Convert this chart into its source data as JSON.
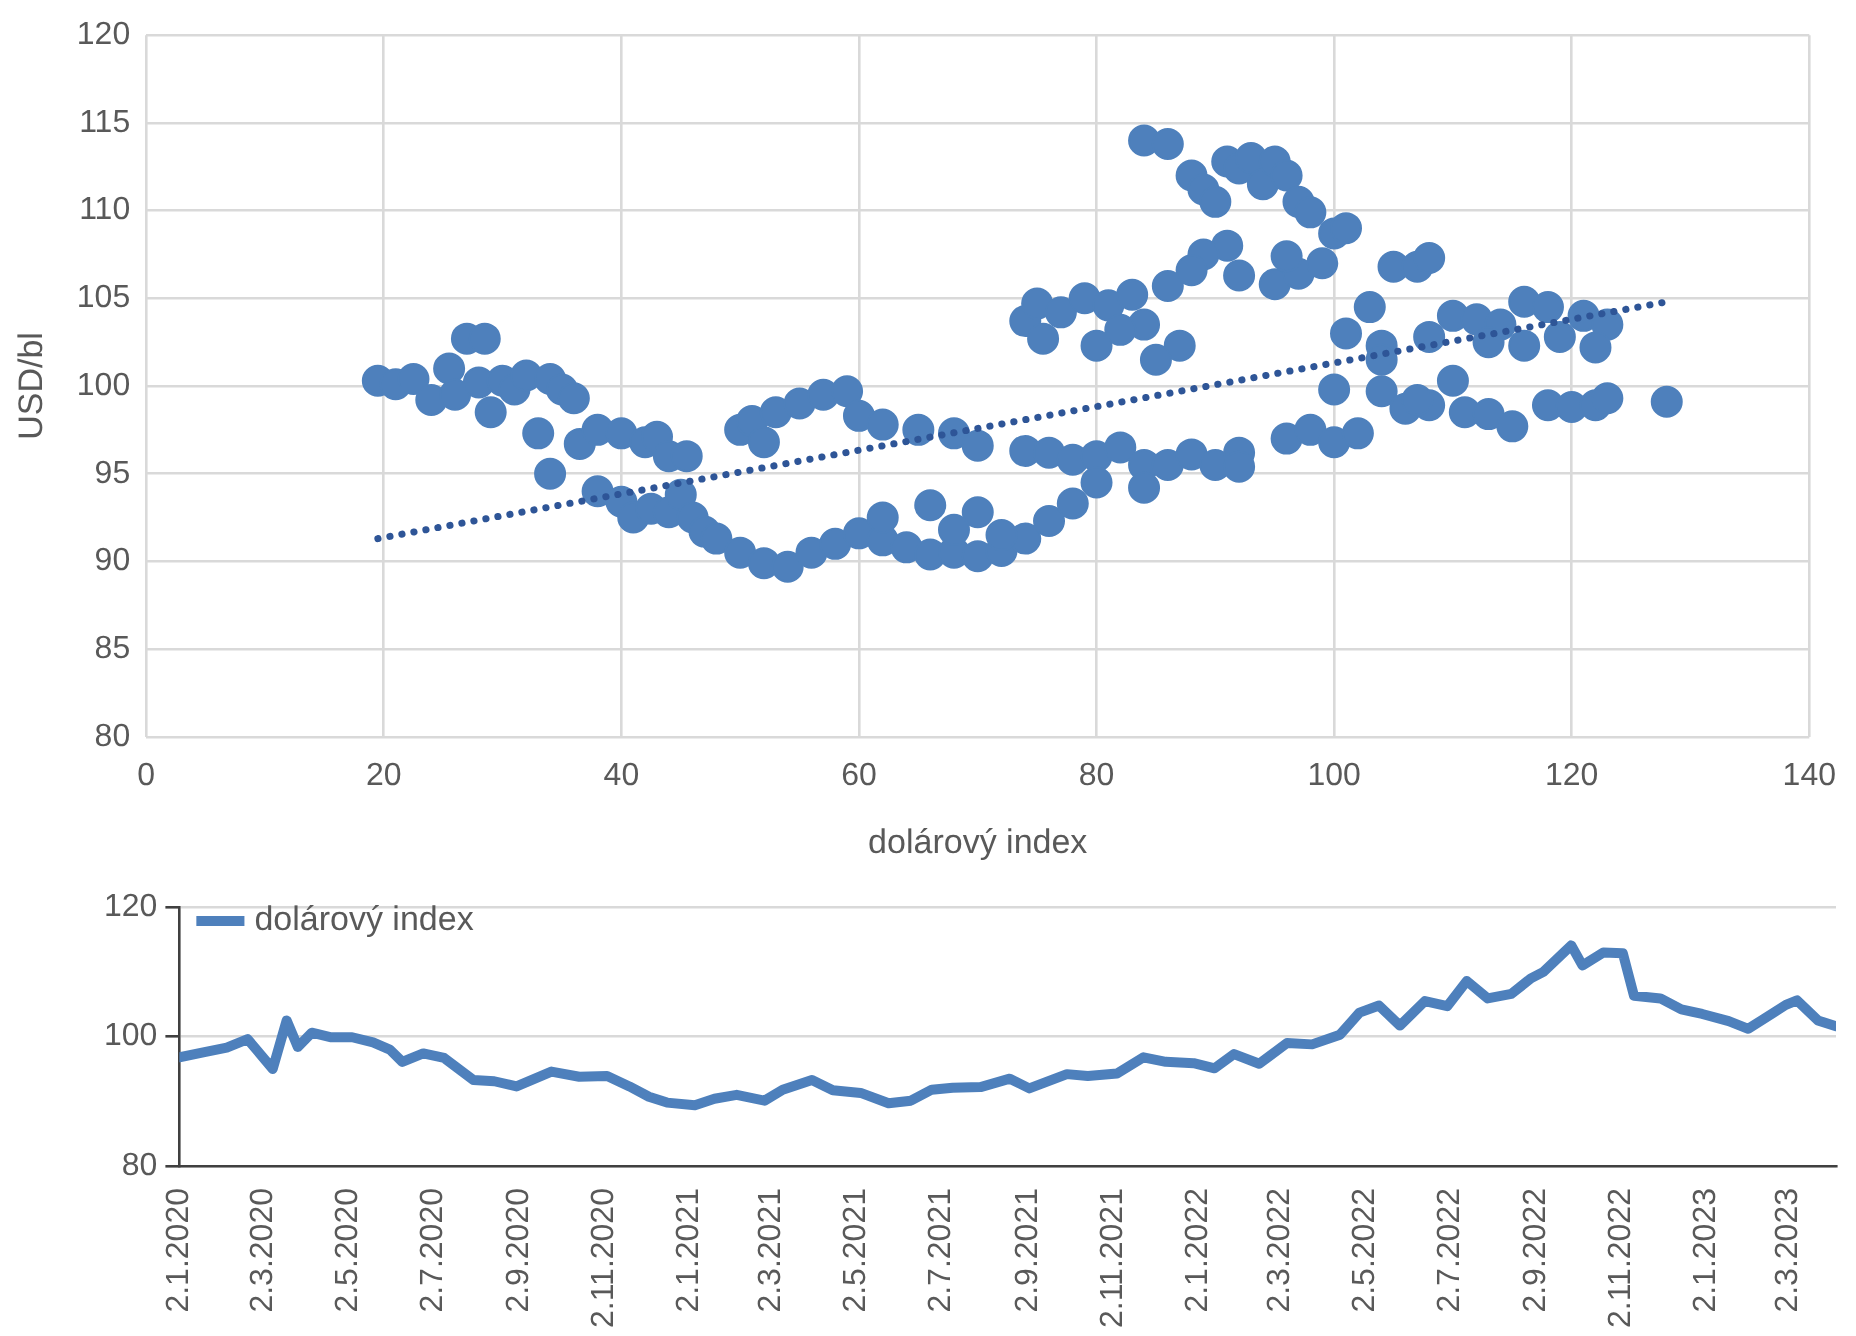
{
  "chart_data": [
    {
      "type": "scatter",
      "xlabel": "dolárový index",
      "ylabel": "USD/bl",
      "xlim": [
        0,
        140
      ],
      "xticks": [
        0,
        20,
        40,
        60,
        80,
        100,
        120,
        140
      ],
      "ylim": [
        80,
        120
      ],
      "yticks": [
        80,
        85,
        90,
        95,
        100,
        105,
        110,
        115,
        120
      ],
      "grid": true,
      "legend": false,
      "marker": "circle",
      "series": [
        {
          "color": "#4e80bc",
          "x": [
            19.5,
            21,
            22.5,
            24,
            25.5,
            26,
            27,
            28.5,
            28,
            29,
            30,
            31,
            32,
            33,
            34,
            35,
            36,
            34,
            36.5,
            38,
            40,
            42,
            43,
            44,
            45.5,
            38,
            40,
            41,
            42.5,
            44,
            45,
            46,
            47,
            48,
            50,
            52,
            54,
            56,
            58,
            60,
            62,
            64,
            66,
            68,
            70,
            72,
            74,
            76,
            78,
            70,
            66,
            62,
            68,
            72,
            50,
            51,
            53,
            55,
            57,
            59,
            52,
            60,
            62,
            65,
            68,
            70,
            74,
            76,
            78,
            80,
            82,
            84,
            86,
            88,
            90,
            92,
            74,
            75,
            77,
            79,
            81,
            83,
            84,
            86,
            75.5,
            80,
            87,
            85,
            82,
            84,
            86,
            88,
            89,
            90,
            91,
            92,
            93,
            94,
            95,
            96,
            97,
            98,
            91,
            89,
            92,
            95,
            97,
            99,
            100,
            101,
            96,
            88,
            101,
            103,
            105,
            107,
            108,
            110,
            112,
            114,
            116,
            118,
            121,
            123,
            122,
            119,
            116,
            113,
            108,
            104,
            96,
            98,
            100,
            102,
            104,
            106,
            108,
            111,
            113,
            115,
            118,
            120,
            122,
            123,
            128,
            100,
            104,
            107,
            110,
            80,
            84,
            92
          ],
          "values": [
            100.3,
            100.1,
            100.4,
            99.2,
            101,
            99.5,
            102.7,
            102.7,
            100.2,
            98.5,
            100.3,
            99.8,
            100.6,
            97.3,
            100.4,
            99.8,
            99.3,
            95,
            96.7,
            97.5,
            97.3,
            96.8,
            97.1,
            96,
            96,
            94,
            93.4,
            92.5,
            93,
            92.8,
            93.8,
            92.5,
            91.7,
            91.3,
            90.5,
            89.9,
            89.7,
            90.5,
            91,
            91.6,
            91.2,
            90.8,
            90.4,
            90.5,
            90.3,
            90.6,
            91.3,
            92.3,
            93.3,
            92.8,
            93.2,
            92.5,
            91.8,
            91.5,
            97.5,
            98,
            98.5,
            99,
            99.5,
            99.7,
            96.8,
            98.3,
            97.8,
            97.5,
            97.3,
            96.6,
            96.3,
            96.2,
            95.8,
            96,
            96.5,
            95.5,
            95.5,
            96.1,
            95.5,
            96.2,
            103.7,
            104.7,
            104.2,
            105,
            104.6,
            105.2,
            103.5,
            105.7,
            102.7,
            102.3,
            102.3,
            101.5,
            103.2,
            114,
            113.8,
            112,
            111.2,
            110.5,
            112.8,
            112.4,
            113,
            111.5,
            112.8,
            112,
            110.5,
            109.9,
            108,
            107.5,
            106.3,
            105.8,
            106.4,
            107,
            108.7,
            109,
            107.4,
            106.6,
            103,
            104.5,
            106.8,
            106.8,
            107.3,
            104,
            103.8,
            103.5,
            104.8,
            104.5,
            104,
            103.5,
            102.2,
            102.8,
            102.3,
            102.5,
            102.8,
            102.3,
            97,
            97.5,
            96.8,
            97.3,
            99.7,
            98.7,
            98.9,
            98.5,
            98.4,
            97.7,
            98.9,
            98.8,
            98.9,
            99.3,
            99.1,
            99.8,
            101.5,
            99.2,
            100.3,
            94.5,
            94.2,
            95.4
          ]
        },
        {
          "type": "line",
          "color": "#2e5597",
          "line_style": "dotted",
          "marker": "none",
          "x": [
            19.5,
            128
          ],
          "values": [
            91.3,
            104.8
          ]
        }
      ]
    },
    {
      "type": "line",
      "xlim": [
        "2020-01-02",
        "2023-04-05"
      ],
      "ylim": [
        80,
        120
      ],
      "yticks": [
        80,
        100,
        120
      ],
      "grid": "y",
      "legend": "top left",
      "marker": "none",
      "xticks": [
        {
          "value": "2020-01-02",
          "label": "2.1.2020"
        },
        {
          "value": "2020-03-02",
          "label": "2.3.2020"
        },
        {
          "value": "2020-05-02",
          "label": "2.5.2020"
        },
        {
          "value": "2020-07-02",
          "label": "2.7.2020"
        },
        {
          "value": "2020-09-02",
          "label": "2.9.2020"
        },
        {
          "value": "2020-11-02",
          "label": "2.11.2020"
        },
        {
          "value": "2021-01-02",
          "label": "2.1.2021"
        },
        {
          "value": "2021-03-02",
          "label": "2.3.2021"
        },
        {
          "value": "2021-05-02",
          "label": "2.5.2021"
        },
        {
          "value": "2021-07-02",
          "label": "2.7.2021"
        },
        {
          "value": "2021-09-02",
          "label": "2.9.2021"
        },
        {
          "value": "2021-11-02",
          "label": "2.11.2021"
        },
        {
          "value": "2022-01-02",
          "label": "2.1.2022"
        },
        {
          "value": "2022-03-02",
          "label": "2.3.2022"
        },
        {
          "value": "2022-05-02",
          "label": "2.5.2022"
        },
        {
          "value": "2022-07-02",
          "label": "2.7.2022"
        },
        {
          "value": "2022-09-02",
          "label": "2.9.2022"
        },
        {
          "value": "2022-11-02",
          "label": "2.11.2022"
        },
        {
          "value": "2023-01-02",
          "label": "2.1.2023"
        },
        {
          "value": "2023-03-02",
          "label": "2.3.2023"
        }
      ],
      "x": [
        "2020-01-02",
        "2020-01-20",
        "2020-02-05",
        "2020-02-20",
        "2020-03-09",
        "2020-03-19",
        "2020-03-27",
        "2020-04-06",
        "2020-04-20",
        "2020-05-05",
        "2020-05-20",
        "2020-06-01",
        "2020-06-10",
        "2020-06-25",
        "2020-07-10",
        "2020-07-31",
        "2020-08-15",
        "2020-08-31",
        "2020-09-25",
        "2020-10-15",
        "2020-11-04",
        "2020-11-20",
        "2020-12-04",
        "2020-12-17",
        "2021-01-06",
        "2021-01-20",
        "2021-02-05",
        "2021-02-25",
        "2021-03-10",
        "2021-03-31",
        "2021-04-15",
        "2021-05-05",
        "2021-05-25",
        "2021-06-10",
        "2021-06-25",
        "2021-07-10",
        "2021-07-30",
        "2021-08-20",
        "2021-09-03",
        "2021-09-30",
        "2021-10-15",
        "2021-11-05",
        "2021-11-24",
        "2021-12-10",
        "2021-12-30",
        "2022-01-14",
        "2022-01-28",
        "2022-02-15",
        "2022-03-07",
        "2022-03-25",
        "2022-04-14",
        "2022-04-28",
        "2022-05-12",
        "2022-05-27",
        "2022-06-14",
        "2022-06-30",
        "2022-07-14",
        "2022-07-29",
        "2022-08-15",
        "2022-08-29",
        "2022-09-07",
        "2022-09-27",
        "2022-10-05",
        "2022-10-20",
        "2022-11-03",
        "2022-11-11",
        "2022-11-30",
        "2022-12-15",
        "2022-12-30",
        "2023-01-18",
        "2023-02-01",
        "2023-02-28",
        "2023-03-08",
        "2023-03-23",
        "2023-04-05"
      ],
      "series": [
        {
          "name": "dolárový index",
          "color": "#4e80bc",
          "values": [
            96.8,
            97.6,
            98.3,
            99.6,
            95.0,
            102.5,
            98.4,
            100.6,
            99.9,
            99.9,
            99.1,
            98.0,
            96.1,
            97.4,
            96.7,
            93.3,
            93.1,
            92.3,
            94.6,
            93.8,
            93.9,
            92.3,
            90.7,
            89.8,
            89.4,
            90.4,
            91.0,
            90.1,
            91.8,
            93.3,
            91.7,
            91.3,
            89.7,
            90.1,
            91.8,
            92.1,
            92.2,
            93.5,
            92.0,
            94.2,
            93.9,
            94.3,
            96.8,
            96.1,
            95.9,
            95.1,
            97.3,
            95.8,
            99.0,
            98.8,
            100.3,
            103.7,
            104.8,
            101.7,
            105.5,
            104.7,
            108.6,
            105.9,
            106.6,
            109.0,
            110.0,
            114.1,
            111.0,
            113.0,
            112.9,
            106.3,
            105.9,
            104.2,
            103.5,
            102.4,
            101.2,
            104.9,
            105.6,
            102.5,
            101.6
          ]
        }
      ]
    }
  ]
}
